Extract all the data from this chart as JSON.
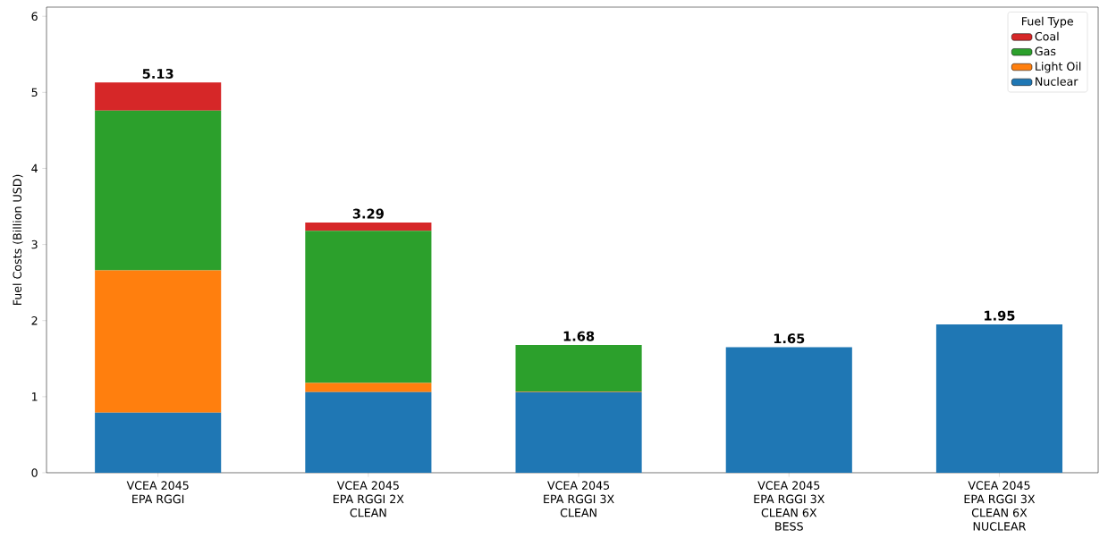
{
  "chart_data": {
    "type": "bar",
    "stacked": true,
    "categories": [
      "VCEA 2045\nEPA RGGI",
      "VCEA 2045\nEPA RGGI 2X\nCLEAN",
      "VCEA 2045\nEPA RGGI 3X\nCLEAN",
      "VCEA 2045\nEPA RGGI 3X\nCLEAN 6X\nBESS",
      "VCEA 2045\nEPA RGGI 3X\nCLEAN 6X\nNUCLEAR"
    ],
    "ylabel": "Fuel Costs (Billion USD)",
    "legend_title": "Fuel Type",
    "series": [
      {
        "name": "Nuclear",
        "color": "#1f77b4",
        "values": [
          0.79,
          1.06,
          1.06,
          1.65,
          1.95
        ]
      },
      {
        "name": "Light Oil",
        "color": "#ff7f0e",
        "values": [
          1.87,
          0.12,
          0.01,
          0,
          0
        ]
      },
      {
        "name": "Gas",
        "color": "#2ca02c",
        "values": [
          2.1,
          2.0,
          0.61,
          0,
          0
        ]
      },
      {
        "name": "Coal",
        "color": "#d62728",
        "values": [
          0.37,
          0.11,
          0,
          0,
          0
        ]
      }
    ],
    "totals": [
      "5.13",
      "3.29",
      "1.68",
      "1.65",
      "1.95"
    ],
    "ylim": [
      0,
      6.12
    ],
    "yticks": [
      0,
      1,
      2,
      3,
      4,
      5,
      6
    ],
    "grid": false,
    "legend": "top right"
  }
}
